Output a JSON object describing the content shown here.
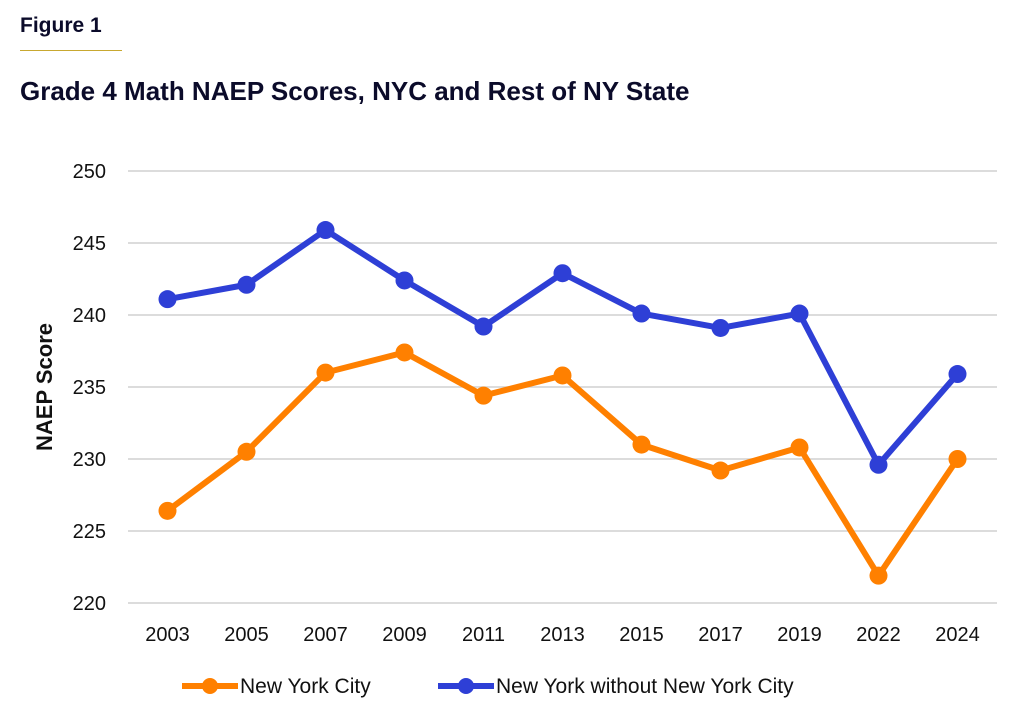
{
  "figure_label": "Figure 1",
  "colors": {
    "accent_rule": "#c8a830",
    "grid": "#d0d0d0",
    "text": "#111111"
  },
  "chart_data": {
    "type": "line",
    "title": "Grade 4 Math NAEP Scores, NYC and Rest of NY State",
    "xlabel": "",
    "ylabel": "NAEP Score",
    "categories": [
      "2003",
      "2005",
      "2007",
      "2009",
      "2011",
      "2013",
      "2015",
      "2017",
      "2019",
      "2022",
      "2024"
    ],
    "ylim": [
      220,
      250
    ],
    "yticks": [
      220,
      225,
      230,
      235,
      240,
      245,
      250
    ],
    "grid": true,
    "legend_position": "bottom",
    "series": [
      {
        "name": "New York City",
        "color": "#ff8000",
        "values": [
          226.4,
          230.5,
          236.0,
          237.4,
          234.4,
          235.8,
          231.0,
          229.2,
          230.8,
          221.9,
          230.0
        ]
      },
      {
        "name": "New York without New York City",
        "color": "#2e3fd6",
        "values": [
          241.1,
          242.1,
          245.9,
          242.4,
          239.2,
          242.9,
          240.1,
          239.1,
          240.1,
          229.6,
          235.9
        ]
      }
    ]
  }
}
